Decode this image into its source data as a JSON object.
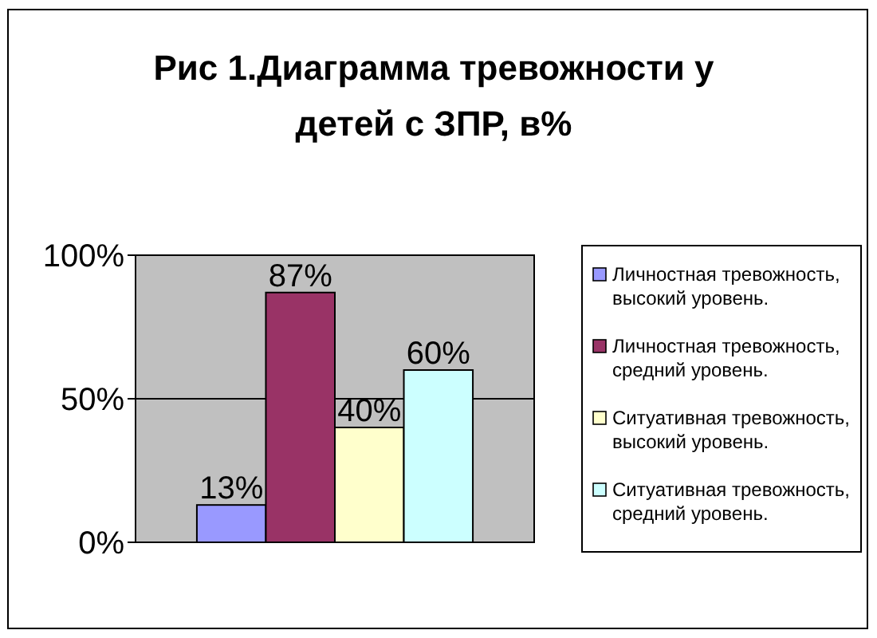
{
  "chart_data": {
    "type": "bar",
    "title": "Рис 1.Диаграмма тревожности у детей с ЗПР, в%",
    "categories": [
      null
    ],
    "series": [
      {
        "name": "Личностная тревожность, высокий уровень.",
        "color": "#9999ff",
        "values": [
          13
        ],
        "value_labels": [
          "13%"
        ]
      },
      {
        "name": "Личностная тревожность, средний уровень.",
        "color": "#993366",
        "values": [
          87
        ],
        "value_labels": [
          "87%"
        ]
      },
      {
        "name": "Ситуативная тревожность, высокий уровень.",
        "color": "#ffffcc",
        "values": [
          40
        ],
        "value_labels": [
          "40%"
        ]
      },
      {
        "name": "Ситуативная тревожность, средний уровень.",
        "color": "#ccffff",
        "values": [
          60
        ],
        "value_labels": [
          "60%"
        ]
      }
    ],
    "ylim": [
      0,
      100
    ],
    "yticks": [
      {
        "value": 0,
        "label": "0%"
      },
      {
        "value": 50,
        "label": "50%"
      },
      {
        "value": 100,
        "label": "100%"
      }
    ],
    "grid": "y",
    "legend": "right"
  }
}
